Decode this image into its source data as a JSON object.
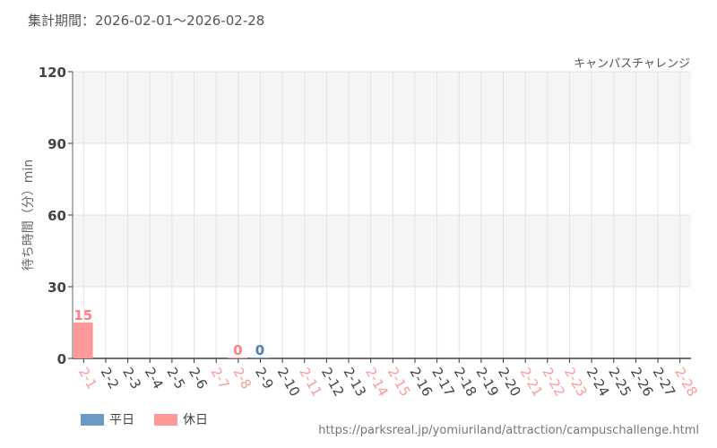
{
  "header": {
    "period": "集計期間：2026-02-01～2026-02-28",
    "attraction": "キャンパスチャレンジ"
  },
  "footer": {
    "url": "https://parksreal.jp/yomiuriland/attraction/campuschallenge.html"
  },
  "colors": {
    "weekday": "#6b9bc3",
    "holiday": "#ff9999",
    "holiday_label": "#ff8080",
    "weekday_label": "#4a7fb0"
  },
  "chart_data": {
    "type": "bar",
    "ylabel": "待ち時間（分）min",
    "ylim": [
      0,
      120
    ],
    "yticks": [
      0,
      30,
      60,
      90,
      120
    ],
    "categories": [
      "2-1",
      "2-2",
      "2-3",
      "2-4",
      "2-5",
      "2-6",
      "2-7",
      "2-8",
      "2-9",
      "2-10",
      "2-11",
      "2-12",
      "2-13",
      "2-14",
      "2-15",
      "2-16",
      "2-17",
      "2-18",
      "2-19",
      "2-20",
      "2-21",
      "2-22",
      "2-23",
      "2-24",
      "2-25",
      "2-26",
      "2-27",
      "2-28"
    ],
    "holidays": [
      "2-1",
      "2-7",
      "2-8",
      "2-11",
      "2-14",
      "2-15",
      "2-21",
      "2-22",
      "2-23",
      "2-28"
    ],
    "series": [
      {
        "name": "平日",
        "values": [
          null,
          null,
          null,
          null,
          null,
          null,
          null,
          null,
          0,
          null,
          null,
          null,
          null,
          null,
          null,
          null,
          null,
          null,
          null,
          null,
          null,
          null,
          null,
          null,
          null,
          null,
          null,
          null
        ]
      },
      {
        "name": "休日",
        "values": [
          15,
          null,
          null,
          null,
          null,
          null,
          null,
          0,
          null,
          null,
          null,
          null,
          null,
          null,
          null,
          null,
          null,
          null,
          null,
          null,
          null,
          null,
          null,
          null,
          null,
          null,
          null,
          null
        ]
      }
    ],
    "legend": "bottom-left",
    "grid": true
  }
}
